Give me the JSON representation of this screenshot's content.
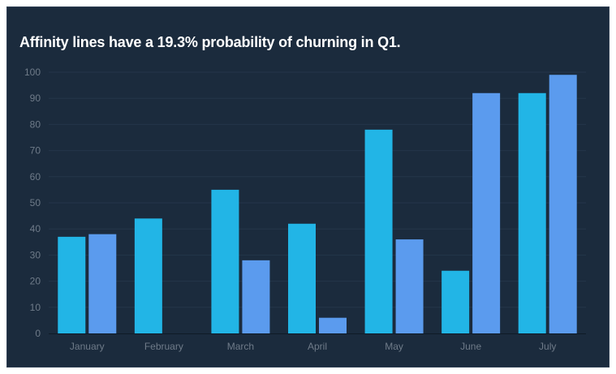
{
  "chart_data": {
    "type": "bar",
    "title": "Affinity lines have a 19.3% probability of churning in Q1.",
    "categories": [
      "January",
      "February",
      "March",
      "April",
      "May",
      "June",
      "July"
    ],
    "series": [
      {
        "values": [
          37,
          44,
          55,
          42,
          78,
          24,
          92
        ],
        "color": "#22b5e6"
      },
      {
        "values": [
          38,
          0,
          28,
          6,
          36,
          92,
          99
        ],
        "color": "#5b9bee"
      }
    ],
    "yticks": [
      "0",
      "10",
      "20",
      "30",
      "40",
      "50",
      "60",
      "70",
      "80",
      "90",
      "100"
    ],
    "ylim": [
      0,
      100
    ],
    "grid": true,
    "legend": "none"
  },
  "colors": {
    "background": "#1b2b3d",
    "grid": "#24364a",
    "axis": "#0f1a26",
    "tick_text": "#6f7b89",
    "title": "#ffffff"
  }
}
